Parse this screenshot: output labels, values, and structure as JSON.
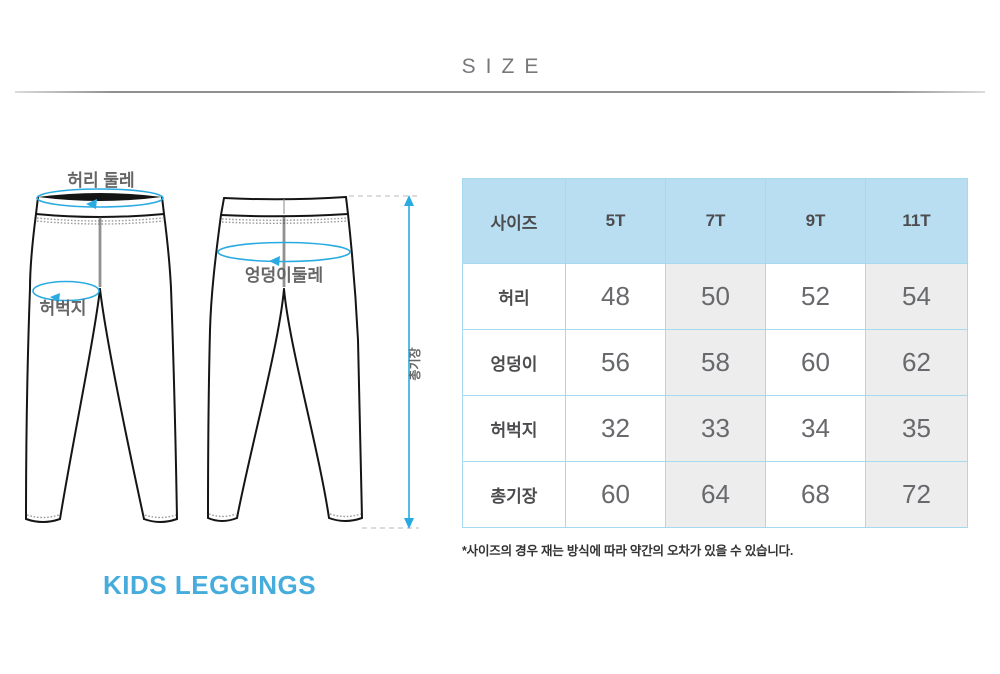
{
  "title": "SIZE",
  "diagram": {
    "labels": {
      "waist": "허리 둘레",
      "thigh": "허벅지",
      "hip": "엉덩이둘레",
      "length": "총기장"
    },
    "caption": "KIDS LEGGINGS"
  },
  "chart_data": {
    "type": "table",
    "title": "SIZE",
    "columns": [
      "사이즈",
      "5T",
      "7T",
      "9T",
      "11T"
    ],
    "rows": [
      {
        "label": "허리",
        "values": [
          48,
          50,
          52,
          54
        ]
      },
      {
        "label": "엉덩이",
        "values": [
          56,
          58,
          60,
          62
        ]
      },
      {
        "label": "허벅지",
        "values": [
          32,
          33,
          34,
          35
        ]
      },
      {
        "label": "총기장",
        "values": [
          60,
          64,
          68,
          72
        ]
      }
    ],
    "shaded_columns": [
      "7T",
      "11T"
    ]
  },
  "footnote": "*사이즈의 경우 재는 방식에 따라 약간의 오차가 있을 수 있습니다.",
  "colors": {
    "annotation_blue": "#29abe2",
    "caption_blue": "#45acdc",
    "table_header_bg": "#b9def1",
    "table_border": "#a6d8ee",
    "table_shaded_bg": "#ededee",
    "title_gray": "#77787b"
  }
}
